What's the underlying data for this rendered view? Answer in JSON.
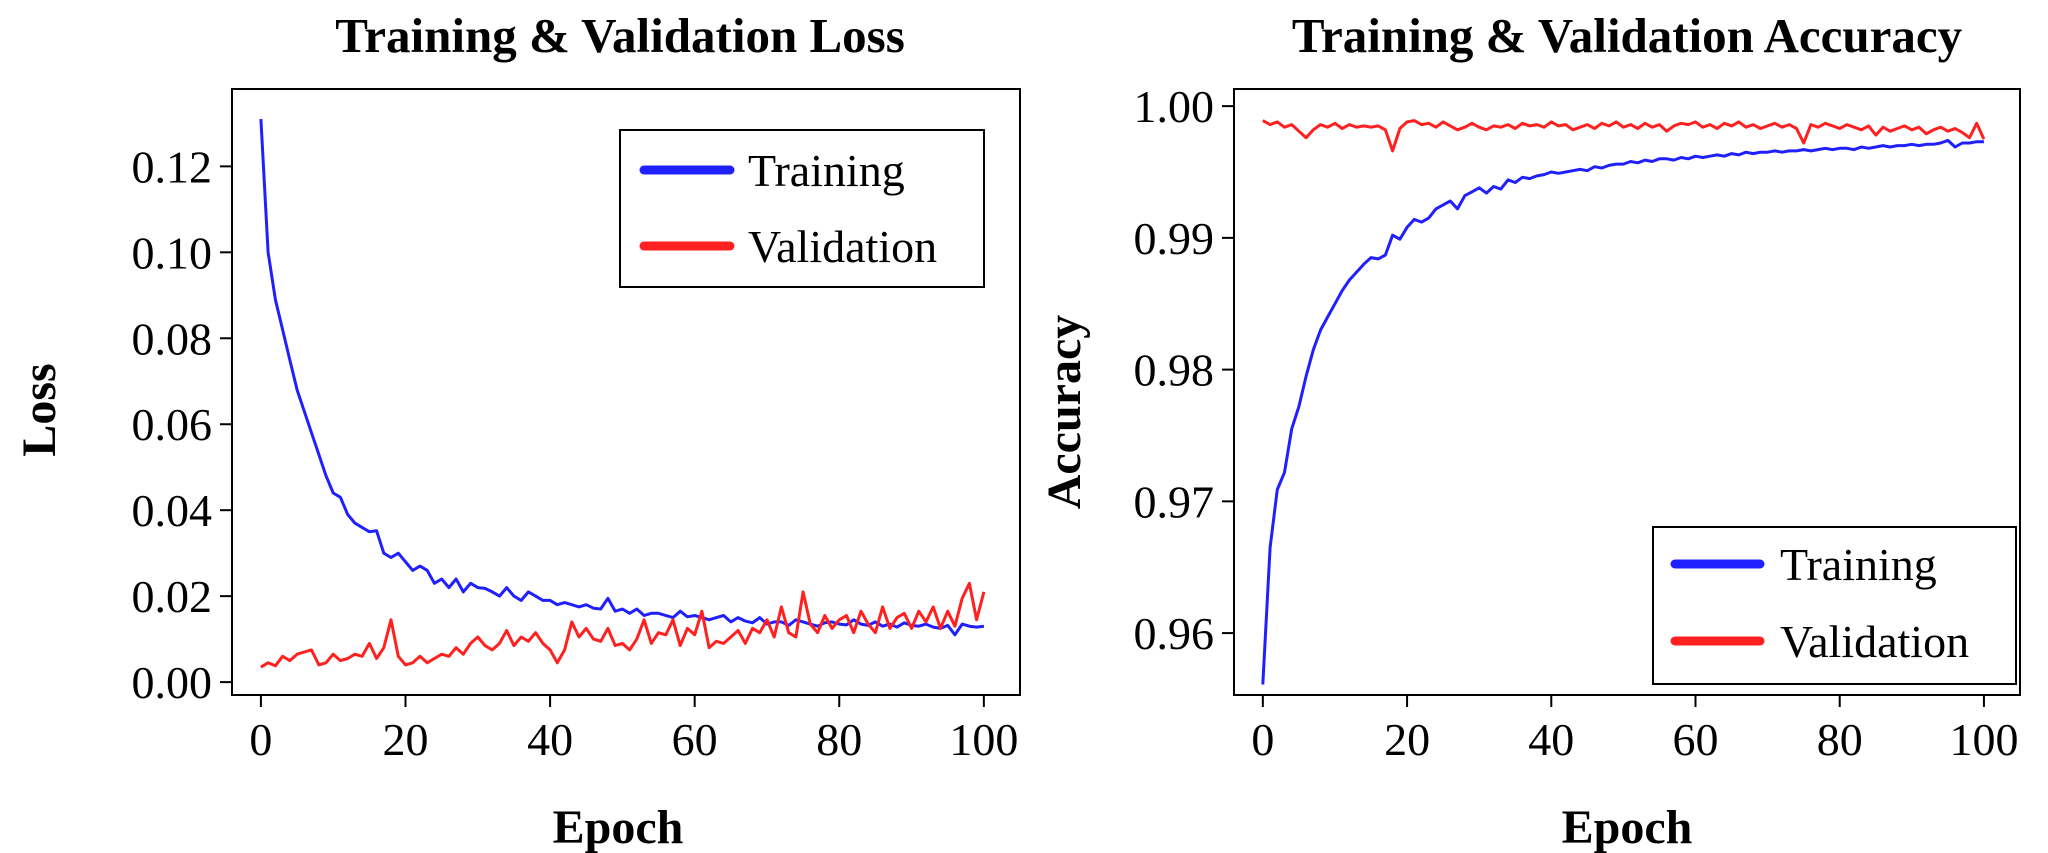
{
  "chart_data": [
    {
      "type": "line",
      "title": "Training & Validation Loss",
      "xlabel": "Epoch",
      "ylabel": "Loss",
      "xlim": [
        -4,
        105
      ],
      "ylim": [
        -0.003,
        0.138
      ],
      "xticks": [
        0,
        20,
        40,
        60,
        80,
        100
      ],
      "xtick_labels": [
        "0",
        "20",
        "40",
        "60",
        "80",
        "100"
      ],
      "yticks": [
        0.0,
        0.02,
        0.04,
        0.06,
        0.08,
        0.1,
        0.12
      ],
      "ytick_labels": [
        "0.00",
        "0.02",
        "0.04",
        "0.06",
        "0.08",
        "0.10",
        "0.12"
      ],
      "grid": false,
      "legend_position": "top-right",
      "series": [
        {
          "name": "Training",
          "color": "#2020ff",
          "values": [
            0.131,
            0.1,
            0.089,
            0.082,
            0.075,
            0.068,
            0.063,
            0.058,
            0.053,
            0.048,
            0.044,
            0.043,
            0.039,
            0.037,
            0.036,
            0.035,
            0.0352,
            0.03,
            0.029,
            0.03,
            0.028,
            0.026,
            0.027,
            0.026,
            0.023,
            0.024,
            0.022,
            0.024,
            0.021,
            0.023,
            0.022,
            0.0218,
            0.021,
            0.02,
            0.022,
            0.02,
            0.019,
            0.021,
            0.02,
            0.019,
            0.019,
            0.018,
            0.0185,
            0.018,
            0.0175,
            0.018,
            0.0172,
            0.017,
            0.0195,
            0.0165,
            0.017,
            0.016,
            0.017,
            0.0155,
            0.016,
            0.016,
            0.0155,
            0.015,
            0.0165,
            0.0152,
            0.0155,
            0.015,
            0.0145,
            0.015,
            0.0155,
            0.014,
            0.015,
            0.0142,
            0.0138,
            0.015,
            0.0135,
            0.014,
            0.014,
            0.0132,
            0.0145,
            0.014,
            0.0135,
            0.013,
            0.0138,
            0.014,
            0.0135,
            0.0133,
            0.0145,
            0.0135,
            0.0132,
            0.014,
            0.013,
            0.0135,
            0.0128,
            0.0138,
            0.0132,
            0.013,
            0.0135,
            0.0128,
            0.0125,
            0.0132,
            0.011,
            0.0135,
            0.013,
            0.0128,
            0.013
          ]
        },
        {
          "name": "Validation",
          "color": "#ff2020",
          "values": [
            0.0035,
            0.0045,
            0.0038,
            0.006,
            0.005,
            0.0065,
            0.007,
            0.0075,
            0.004,
            0.0045,
            0.0065,
            0.005,
            0.0055,
            0.0065,
            0.006,
            0.009,
            0.0055,
            0.008,
            0.0145,
            0.006,
            0.004,
            0.0045,
            0.006,
            0.0045,
            0.0055,
            0.0065,
            0.006,
            0.008,
            0.0065,
            0.009,
            0.0105,
            0.0085,
            0.0075,
            0.009,
            0.012,
            0.0085,
            0.0105,
            0.0095,
            0.0115,
            0.009,
            0.0075,
            0.0045,
            0.0075,
            0.014,
            0.0105,
            0.0125,
            0.01,
            0.0095,
            0.0125,
            0.0085,
            0.009,
            0.0075,
            0.01,
            0.0145,
            0.009,
            0.0115,
            0.011,
            0.0145,
            0.0085,
            0.0125,
            0.011,
            0.0165,
            0.008,
            0.0095,
            0.009,
            0.0105,
            0.012,
            0.009,
            0.0125,
            0.0115,
            0.0145,
            0.0105,
            0.0175,
            0.0115,
            0.0105,
            0.021,
            0.0135,
            0.0115,
            0.0155,
            0.0125,
            0.0145,
            0.0155,
            0.0115,
            0.0165,
            0.0135,
            0.0115,
            0.0175,
            0.0125,
            0.015,
            0.016,
            0.0125,
            0.0165,
            0.014,
            0.0175,
            0.0125,
            0.0165,
            0.013,
            0.0195,
            0.023,
            0.0145,
            0.021
          ]
        }
      ]
    },
    {
      "type": "line",
      "title": "Training & Validation Accuracy",
      "xlabel": "Epoch",
      "ylabel": "Accuracy",
      "xlim": [
        -4,
        105
      ],
      "ylim": [
        0.9553,
        1.0013
      ],
      "xticks": [
        0,
        20,
        40,
        60,
        80,
        100
      ],
      "xtick_labels": [
        "0",
        "20",
        "40",
        "60",
        "80",
        "100"
      ],
      "yticks": [
        0.96,
        0.97,
        0.98,
        0.99,
        1.0
      ],
      "ytick_labels": [
        "0.96",
        "0.97",
        "0.98",
        "0.99",
        "1.00"
      ],
      "grid": false,
      "legend_position": "bottom-right",
      "series": [
        {
          "name": "Training",
          "color": "#2020ff",
          "values": [
            0.9561,
            0.9665,
            0.9709,
            0.9722,
            0.9755,
            0.9772,
            0.9795,
            0.9815,
            0.983,
            0.984,
            0.985,
            0.986,
            0.9868,
            0.9874,
            0.988,
            0.9885,
            0.9884,
            0.9887,
            0.9902,
            0.9899,
            0.9908,
            0.9914,
            0.9912,
            0.9915,
            0.9922,
            0.9925,
            0.9928,
            0.9922,
            0.9932,
            0.9935,
            0.9938,
            0.9934,
            0.9939,
            0.9937,
            0.9944,
            0.9942,
            0.9946,
            0.9945,
            0.9947,
            0.9948,
            0.995,
            0.9949,
            0.995,
            0.9951,
            0.9952,
            0.9951,
            0.9954,
            0.9953,
            0.9955,
            0.9956,
            0.9956,
            0.9958,
            0.9957,
            0.9959,
            0.9958,
            0.996,
            0.996,
            0.9959,
            0.9961,
            0.996,
            0.9962,
            0.9961,
            0.9962,
            0.9963,
            0.9962,
            0.9964,
            0.9963,
            0.9965,
            0.9964,
            0.9965,
            0.9965,
            0.9966,
            0.9965,
            0.9966,
            0.9966,
            0.9967,
            0.9966,
            0.9967,
            0.9968,
            0.9967,
            0.9968,
            0.9968,
            0.9967,
            0.9969,
            0.9968,
            0.9969,
            0.997,
            0.9969,
            0.997,
            0.997,
            0.9971,
            0.997,
            0.9971,
            0.9971,
            0.9972,
            0.9974,
            0.9969,
            0.9972,
            0.9972,
            0.9973,
            0.9973
          ]
        },
        {
          "name": "Validation",
          "color": "#ff2020",
          "values": [
            0.9989,
            0.9986,
            0.9988,
            0.9984,
            0.9986,
            0.9981,
            0.9976,
            0.9982,
            0.9986,
            0.9984,
            0.9987,
            0.9983,
            0.9986,
            0.9984,
            0.9985,
            0.9984,
            0.9985,
            0.9982,
            0.9966,
            0.9983,
            0.9988,
            0.9989,
            0.9986,
            0.9987,
            0.9984,
            0.9988,
            0.9985,
            0.9982,
            0.9984,
            0.9987,
            0.9984,
            0.9982,
            0.9985,
            0.9984,
            0.9986,
            0.9983,
            0.9987,
            0.9985,
            0.9986,
            0.9984,
            0.9988,
            0.9985,
            0.9986,
            0.9982,
            0.9984,
            0.9986,
            0.9983,
            0.9987,
            0.9985,
            0.9988,
            0.9984,
            0.9986,
            0.9983,
            0.9987,
            0.9984,
            0.9986,
            0.9981,
            0.9985,
            0.9987,
            0.9986,
            0.9988,
            0.9984,
            0.9986,
            0.9983,
            0.9987,
            0.9985,
            0.9988,
            0.9984,
            0.9986,
            0.9983,
            0.9985,
            0.9987,
            0.9984,
            0.9986,
            0.9983,
            0.9972,
            0.9986,
            0.9984,
            0.9987,
            0.9985,
            0.9983,
            0.9986,
            0.9984,
            0.9982,
            0.9985,
            0.9978,
            0.9984,
            0.9981,
            0.9983,
            0.9985,
            0.9982,
            0.9984,
            0.9979,
            0.9982,
            0.9984,
            0.9981,
            0.9983,
            0.998,
            0.9976,
            0.9987,
            0.9975
          ]
        }
      ]
    }
  ]
}
